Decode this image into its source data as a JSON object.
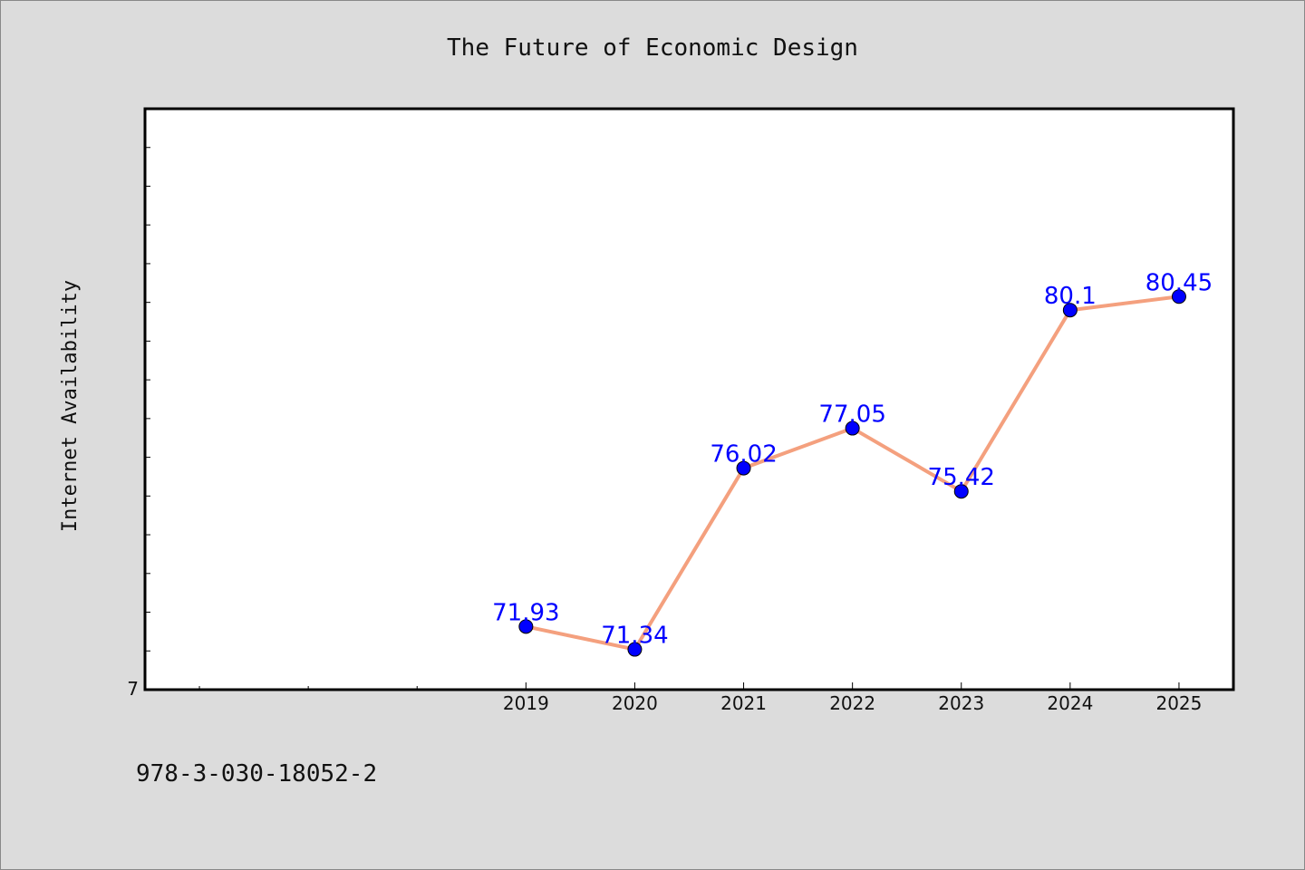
{
  "chart_data": {
    "type": "line",
    "title": "The Future of Economic Design",
    "ylabel": "Internet Availability",
    "xlabel": "",
    "categories": [
      "2019",
      "2020",
      "2021",
      "2022",
      "2023",
      "2024",
      "2025"
    ],
    "series": [
      {
        "values": [
          71.93,
          71.34,
          76.02,
          77.05,
          75.42,
          80.1,
          80.45
        ]
      }
    ],
    "data_labels": [
      "71.93",
      "71.34",
      "76.02",
      "77.05",
      "75.42",
      "80.1",
      "80.45"
    ],
    "ylim": [
      70.3,
      85.3
    ],
    "xlim": [
      2015.5,
      2025.5
    ],
    "y_tick_labels": [
      "7"
    ],
    "grid": false,
    "colors": {
      "line": "#f4a07e",
      "marker": "#0000ff",
      "label": "#0000ff",
      "plot_bg": "#ffffff",
      "figure_bg": "#dcdcdc"
    }
  },
  "footer": {
    "isbn": "978-3-030-18052-2"
  }
}
